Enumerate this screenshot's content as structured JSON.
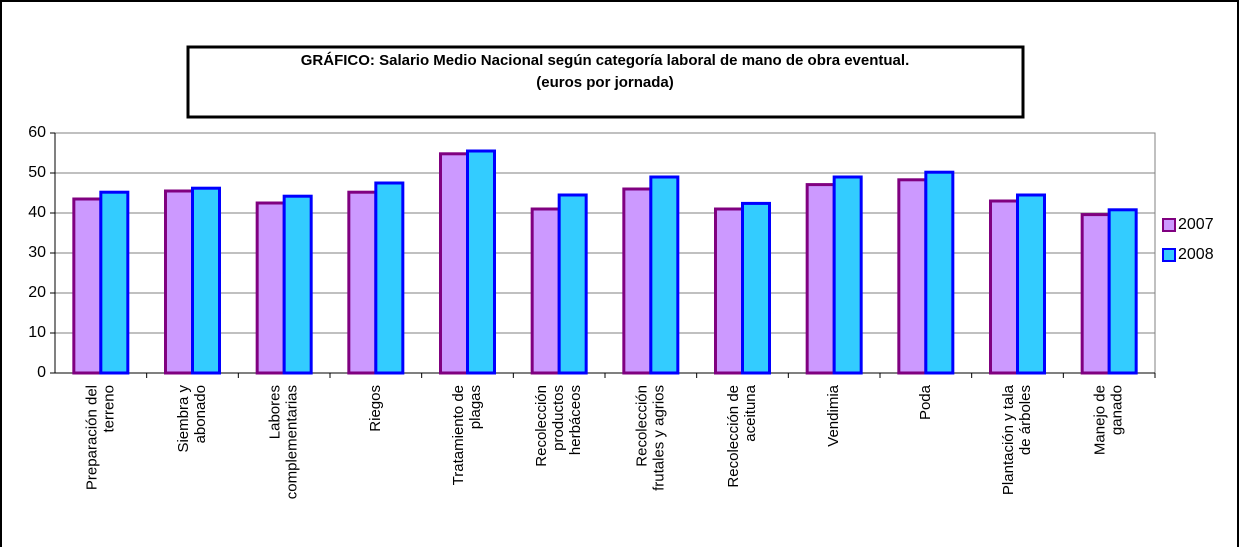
{
  "chart_data": {
    "type": "bar",
    "title": "GRÁFICO: Salario Medio Nacional según categoría laboral de mano de obra eventual.\n(euros por jornada)",
    "categories": [
      "Preparación del\nterreno",
      "Siembra y\nabonado",
      "Labores\ncomplementarias",
      "Riegos",
      "Tratamiento de\nplagas",
      "Recolección\nproductos\nherbáceos",
      "Recolección\nfrutales y agrios",
      "Recolección de\naceituna",
      "Vendimia",
      "Poda",
      "Plantación y tala\nde árboles",
      "Manejo de\nganado"
    ],
    "series": [
      {
        "name": "2007",
        "color": "#cc99ff",
        "edgecolor": "#800080",
        "values": [
          43.5,
          45.5,
          42.5,
          45.2,
          54.8,
          41,
          46,
          41,
          47.1,
          48.3,
          43,
          39.6
        ]
      },
      {
        "name": "2008",
        "color": "#33ccff",
        "edgecolor": "#0000ff",
        "values": [
          45.2,
          46.2,
          44.2,
          47.5,
          55.5,
          44.5,
          49,
          42.4,
          49,
          50.2,
          44.5,
          40.8
        ]
      }
    ],
    "ylim": [
      0,
      60
    ],
    "yticks": [
      0,
      10,
      20,
      30,
      40,
      50,
      60
    ],
    "grid": true,
    "legend": "right"
  }
}
